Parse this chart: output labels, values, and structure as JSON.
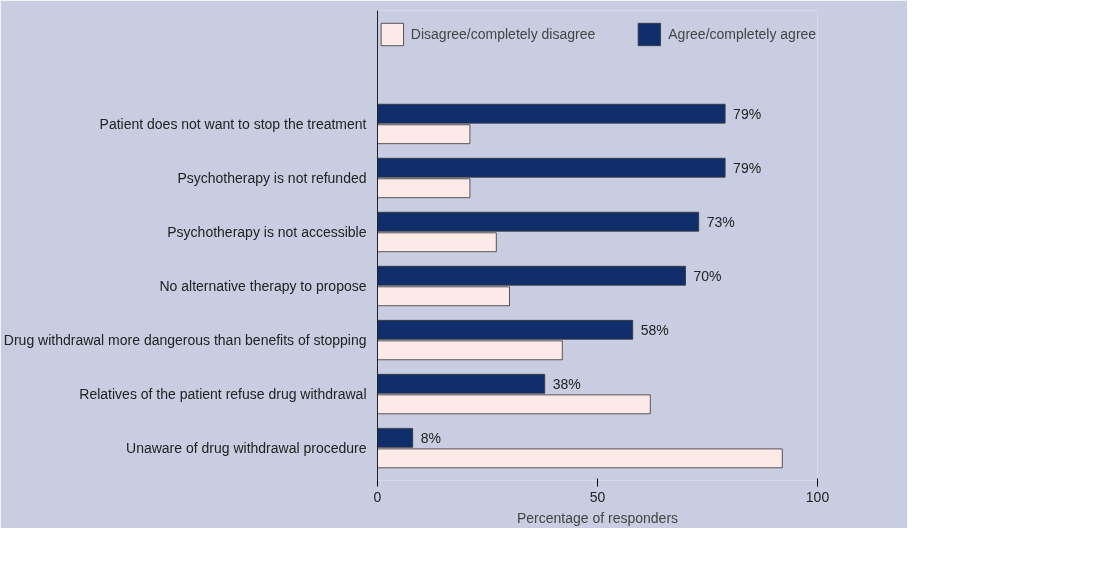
{
  "chart_data": {
    "type": "bar",
    "orientation": "horizontal",
    "xlabel": "Percentage of responders",
    "categories": [
      "Patient does not want to stop the treatment",
      "Psychotherapy is not refunded",
      "Psychotherapy is not accessible",
      "No alternative therapy to propose",
      "Drug withdrawal more dangerous than benefits of stopping",
      "Relatives of the patient refuse drug withdrawal",
      "Unaware of drug withdrawal procedure"
    ],
    "series": [
      {
        "name": "Disagree/completely disagree",
        "color": "#fde9e7",
        "values": [
          21,
          21,
          27,
          30,
          42,
          62,
          92
        ]
      },
      {
        "name": "Agree/completely agree",
        "color": "#0f2e6b",
        "values": [
          79,
          79,
          73,
          70,
          58,
          38,
          8
        ],
        "value_labels": [
          "79%",
          "79%",
          "73%",
          "70%",
          "58%",
          "38%",
          "8%"
        ]
      }
    ],
    "xlim": [
      0,
      100
    ],
    "xticks": [
      0,
      50,
      100
    ],
    "grid": false,
    "legend": "top"
  }
}
